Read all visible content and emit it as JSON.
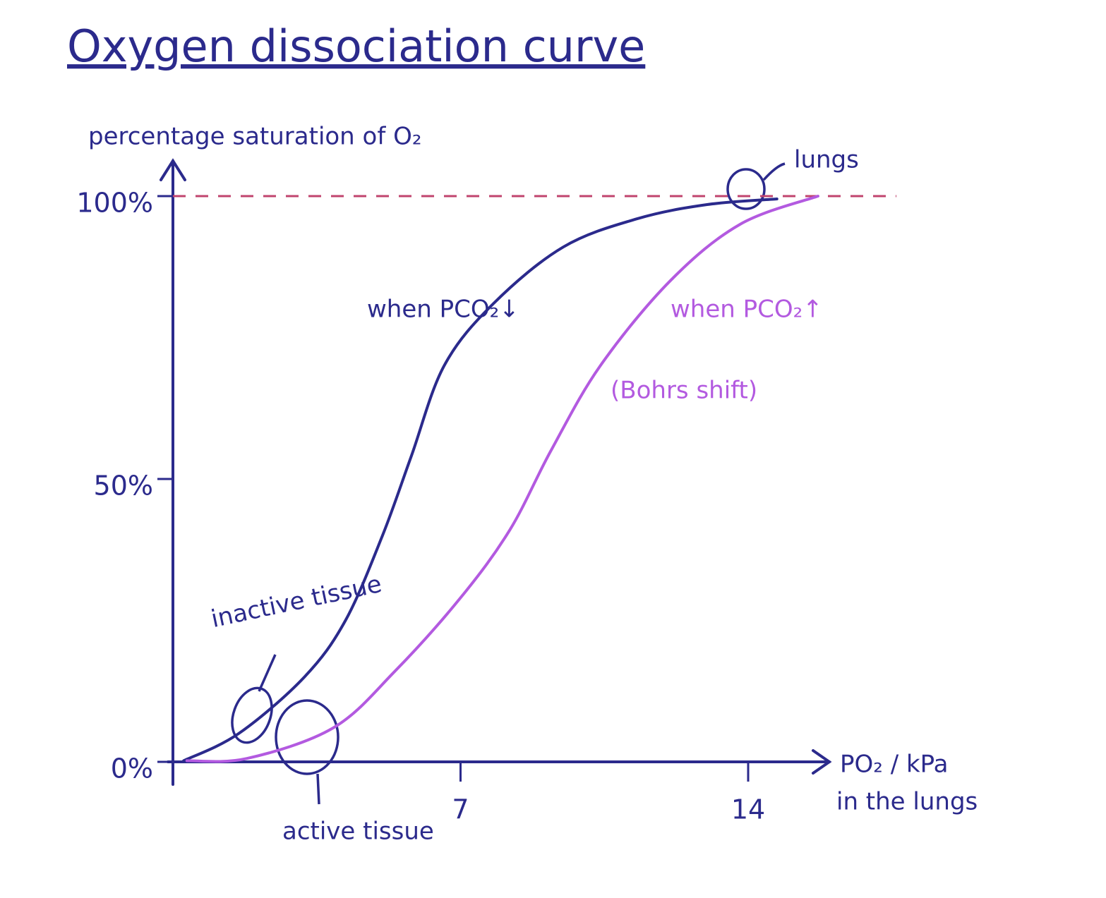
{
  "chart_data": {
    "type": "line",
    "title": "Oxygen dissociation curve",
    "y_label": "percentage saturation of O₂",
    "x_label": "PO₂ / kPa",
    "x_label_2": "in the lungs",
    "xlim": [
      0,
      16
    ],
    "ylim": [
      0,
      106
    ],
    "xticks": [
      7,
      14
    ],
    "yticks": [
      {
        "value": 0,
        "label": "0%"
      },
      {
        "value": 50,
        "label": "50%"
      },
      {
        "value": 100,
        "label": "100%"
      }
    ],
    "hline": 100,
    "hline_color": "#c0446e",
    "series": [
      {
        "name": "when PCO₂↓",
        "color": "#2b2a8c",
        "x": [
          0.26,
          1.6,
          3.2,
          4.2,
          5.1,
          5.8,
          6.6,
          7.8,
          9.5,
          11.3,
          13,
          14.7
        ],
        "values": [
          0.2,
          5,
          15,
          25,
          40,
          54,
          70,
          81,
          91,
          96,
          98.5,
          99.5
        ]
      },
      {
        "name": "when PCO₂↑",
        "color": "#b35ae0",
        "x": [
          0.34,
          1.8,
          3.9,
          5.4,
          7,
          8.2,
          9.2,
          10.4,
          12.1,
          13.8,
          15.7
        ],
        "values": [
          0.2,
          0.6,
          6,
          16,
          29,
          41,
          55,
          70,
          85,
          95,
          100
        ]
      }
    ],
    "annotations": [
      "lungs",
      "(Bohrs shift)",
      "inactive tissue",
      "active tissue"
    ]
  }
}
